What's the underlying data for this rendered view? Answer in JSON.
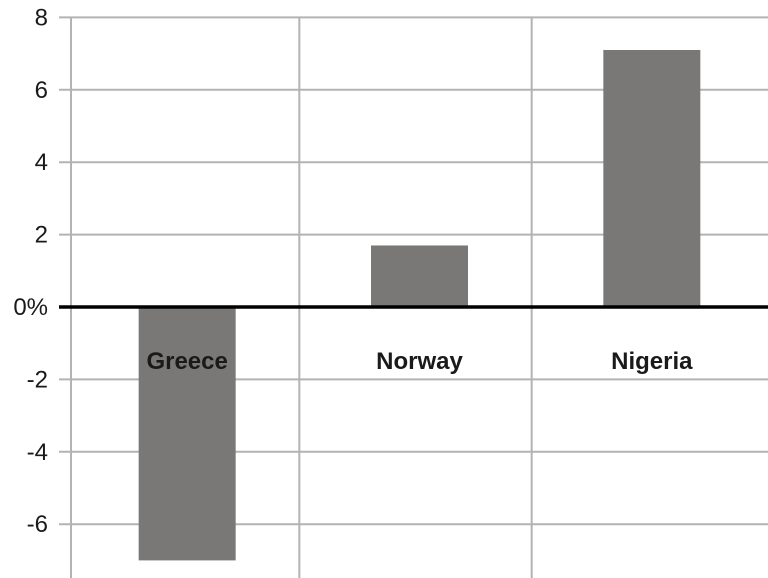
{
  "chart_data": {
    "type": "bar",
    "categories": [
      "Greece",
      "Norway",
      "Nigeria"
    ],
    "values": [
      -7.0,
      1.7,
      7.1
    ],
    "ylim": [
      -7.5,
      8
    ],
    "yticks": [
      {
        "value": 8,
        "label": "8"
      },
      {
        "value": 6,
        "label": "6"
      },
      {
        "value": 4,
        "label": "4"
      },
      {
        "value": 2,
        "label": "2"
      },
      {
        "value": 0,
        "label": "0%"
      },
      {
        "value": -2,
        "label": "-2"
      },
      {
        "value": -4,
        "label": "-4"
      },
      {
        "value": -6,
        "label": "-6"
      }
    ],
    "title": "",
    "xlabel": "",
    "ylabel": "",
    "grid": true,
    "colors": {
      "bar": "#7a7777",
      "grid": "#b3b3b3",
      "zero_line": "#000000",
      "text": "#1a1a1a"
    }
  }
}
